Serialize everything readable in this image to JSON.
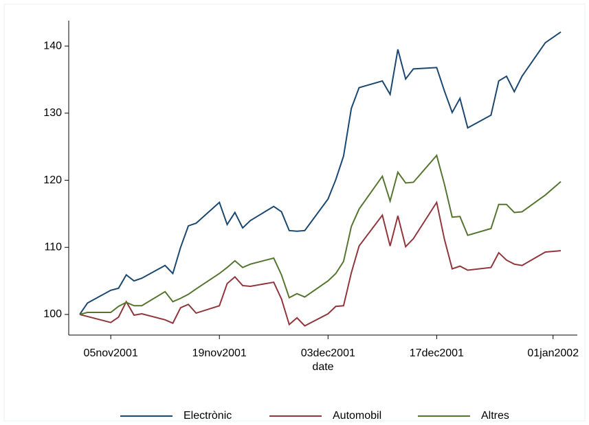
{
  "chart_data": {
    "type": "line",
    "x_label": "date",
    "x": [
      "2001-11-01",
      "2001-11-02",
      "2001-11-05",
      "2001-11-06",
      "2001-11-07",
      "2001-11-08",
      "2001-11-09",
      "2001-11-12",
      "2001-11-13",
      "2001-11-14",
      "2001-11-15",
      "2001-11-16",
      "2001-11-19",
      "2001-11-20",
      "2001-11-21",
      "2001-11-22",
      "2001-11-23",
      "2001-11-26",
      "2001-11-27",
      "2001-11-28",
      "2001-11-29",
      "2001-11-30",
      "2001-12-03",
      "2001-12-04",
      "2001-12-05",
      "2001-12-06",
      "2001-12-07",
      "2001-12-10",
      "2001-12-11",
      "2001-12-12",
      "2001-12-13",
      "2001-12-14",
      "2001-12-17",
      "2001-12-18",
      "2001-12-19",
      "2001-12-20",
      "2001-12-21",
      "2001-12-24",
      "2001-12-25",
      "2001-12-26",
      "2001-12-27",
      "2001-12-28",
      "2001-12-31",
      "2002-01-02"
    ],
    "series": [
      {
        "name": "Electrònic",
        "color": "#1a476f",
        "values": [
          100,
          101.7,
          103.6,
          103.9,
          105.9,
          105.0,
          105.4,
          107.3,
          106.1,
          110.0,
          113.2,
          113.6,
          116.7,
          113.4,
          115.2,
          112.9,
          114.0,
          116.1,
          115.3,
          112.5,
          112.4,
          112.5,
          117.2,
          120.1,
          123.6,
          130.7,
          133.8,
          134.8,
          132.8,
          139.5,
          135.1,
          136.6,
          136.8,
          133.3,
          130.1,
          132.2,
          127.8,
          129.7,
          134.8,
          135.5,
          133.2,
          135.5,
          140.5,
          142.1
        ]
      },
      {
        "name": "Automobil",
        "color": "#90353b",
        "values": [
          100,
          99.7,
          98.8,
          99.6,
          101.9,
          99.9,
          100.1,
          99.2,
          98.7,
          101.0,
          101.5,
          100.2,
          101.3,
          104.6,
          105.6,
          104.3,
          104.2,
          104.8,
          102.3,
          98.5,
          99.5,
          98.3,
          100.1,
          101.2,
          101.3,
          106.2,
          110.2,
          114.8,
          110.2,
          114.7,
          110.1,
          111.3,
          116.7,
          111.2,
          106.8,
          107.2,
          106.6,
          107.0,
          109.2,
          108.1,
          107.5,
          107.3,
          109.3,
          109.5
        ]
      },
      {
        "name": "Altres",
        "color": "#55752f",
        "values": [
          100,
          100.3,
          100.3,
          101.2,
          101.8,
          101.3,
          101.3,
          103.4,
          101.9,
          102.4,
          103.0,
          103.8,
          106.1,
          107.0,
          108.0,
          107.0,
          107.5,
          108.4,
          105.9,
          102.5,
          103.1,
          102.6,
          105.0,
          106.1,
          107.9,
          113.1,
          115.7,
          120.6,
          116.9,
          121.2,
          119.6,
          119.7,
          123.7,
          119.4,
          114.5,
          114.6,
          111.8,
          112.8,
          116.4,
          116.4,
          115.2,
          115.3,
          117.8,
          119.8
        ]
      }
    ],
    "xlim": [
      "2001-10-30",
      "2002-01-04"
    ],
    "xticks": [
      {
        "value": "2001-11-05",
        "label": "05nov2001"
      },
      {
        "value": "2001-11-19",
        "label": "19nov2001"
      },
      {
        "value": "2001-12-03",
        "label": "03dec2001"
      },
      {
        "value": "2001-12-17",
        "label": "17dec2001"
      },
      {
        "value": "2002-01-01",
        "label": "01jan2002"
      }
    ],
    "ylim": [
      97,
      144
    ],
    "yticks": [
      100,
      110,
      120,
      130,
      140
    ],
    "legend": "bottom"
  }
}
